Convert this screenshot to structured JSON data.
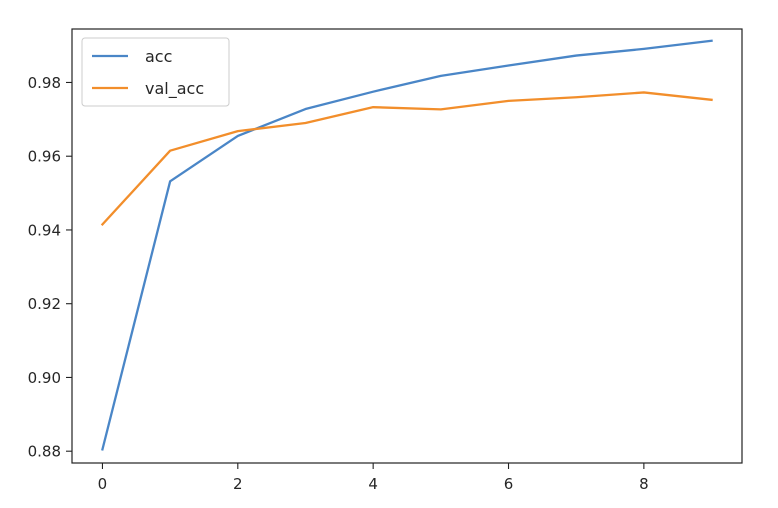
{
  "chart_data": {
    "type": "line",
    "title": "",
    "xlabel": "",
    "ylabel": "",
    "x": [
      0,
      1,
      2,
      3,
      4,
      5,
      6,
      7,
      8,
      9
    ],
    "xlim": [
      -0.45,
      9.45
    ],
    "ylim": [
      0.8768,
      0.9945
    ],
    "xticks": [
      0,
      2,
      4,
      6,
      8
    ],
    "xtick_labels": [
      "0",
      "2",
      "4",
      "6",
      "8"
    ],
    "yticks": [
      0.88,
      0.9,
      0.92,
      0.94,
      0.96,
      0.98
    ],
    "ytick_labels": [
      "0.88",
      "0.90",
      "0.92",
      "0.94",
      "0.96",
      "0.98"
    ],
    "grid": false,
    "legend": "top-left",
    "series": [
      {
        "name": "acc",
        "color": "#4a86c7",
        "values": [
          0.8805,
          0.9532,
          0.9655,
          0.9728,
          0.9775,
          0.9818,
          0.9846,
          0.9873,
          0.9891,
          0.9913
        ]
      },
      {
        "name": "val_acc",
        "color": "#f28e2b",
        "values": [
          0.9415,
          0.9615,
          0.9668,
          0.969,
          0.9733,
          0.9727,
          0.975,
          0.976,
          0.9773,
          0.9753
        ]
      }
    ]
  }
}
